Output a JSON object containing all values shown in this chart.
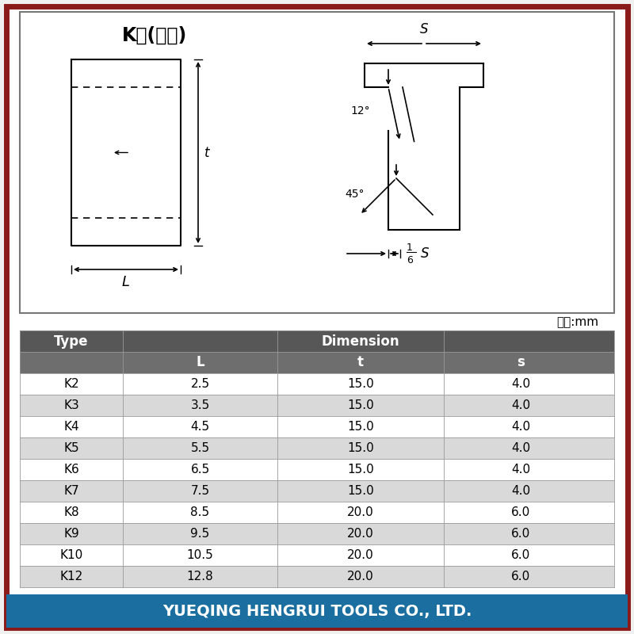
{
  "title": "K型(非标)",
  "unit_text": "单位:mm",
  "company_text": "YUEQING HENGRUI TOOLS CO., LTD.",
  "rows": [
    [
      "K2",
      "2.5",
      "15.0",
      "4.0"
    ],
    [
      "K3",
      "3.5",
      "15.0",
      "4.0"
    ],
    [
      "K4",
      "4.5",
      "15.0",
      "4.0"
    ],
    [
      "K5",
      "5.5",
      "15.0",
      "4.0"
    ],
    [
      "K6",
      "6.5",
      "15.0",
      "4.0"
    ],
    [
      "K7",
      "7.5",
      "15.0",
      "4.0"
    ],
    [
      "K8",
      "8.5",
      "20.0",
      "6.0"
    ],
    [
      "K9",
      "9.5",
      "20.0",
      "6.0"
    ],
    [
      "K10",
      "10.5",
      "20.0",
      "6.0"
    ],
    [
      "K12",
      "12.8",
      "20.0",
      "6.0"
    ]
  ],
  "header_bg": "#575757",
  "subheader_bg": "#6e6e6e",
  "row_bg_even": "#ffffff",
  "row_bg_odd": "#d9d9d9",
  "border_color": "#8b1a1a",
  "company_bg": "#1a6fa0",
  "company_text_color": "#ffffff"
}
